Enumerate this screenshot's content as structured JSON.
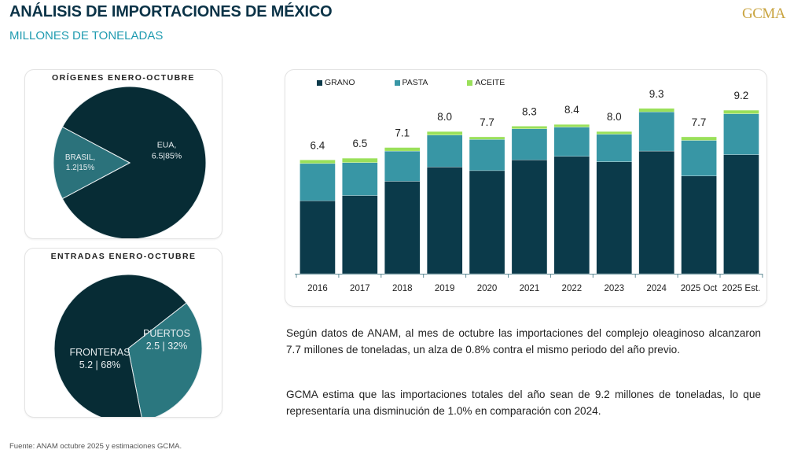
{
  "header": {
    "title": "ANÁLISIS DE IMPORTACIONES DE MÉXICO",
    "subtitle": "MILLONES DE TONELADAS",
    "logo": "GCMA"
  },
  "colors": {
    "grano": "#0b3a4a",
    "pasta": "#3896a5",
    "aceite": "#9ae05a",
    "brasil_slice": "#2b727b",
    "puertos_slice": "#2b777f",
    "dark_slice": "#072c35"
  },
  "chart_data": [
    {
      "type": "pie",
      "title": "ORÍGENES ENERO-OCTUBRE",
      "slices": [
        {
          "label": "EUA,",
          "value": 6.5,
          "percent": 85,
          "text": "6.5|85%"
        },
        {
          "label": "BRASIL,",
          "value": 1.2,
          "percent": 15,
          "text": "1.2|15%"
        }
      ]
    },
    {
      "type": "pie",
      "title": "ENTRADAS ENERO-OCTUBRE",
      "slices": [
        {
          "label": "FRONTERAS",
          "value": 5.2,
          "percent": 68,
          "text": "5.2 | 68%"
        },
        {
          "label": "PUERTOS",
          "value": 2.5,
          "percent": 32,
          "text": "2.5 | 32%"
        }
      ]
    },
    {
      "type": "bar",
      "stacked": true,
      "title": "",
      "xlabel": "",
      "ylabel": "Millones de toneladas",
      "ylim": [
        0,
        10
      ],
      "grid": false,
      "legend_position": "top-left",
      "categories": [
        "2016",
        "2017",
        "2018",
        "2019",
        "2020",
        "2021",
        "2022",
        "2023",
        "2024",
        "2025 Oct",
        "2025 Est."
      ],
      "series": [
        {
          "name": "GRANO",
          "values": [
            4.1,
            4.4,
            5.2,
            6.0,
            5.8,
            6.4,
            6.6,
            6.3,
            6.9,
            5.5,
            6.7
          ]
        },
        {
          "name": "PASTA",
          "values": [
            2.1,
            1.85,
            1.7,
            1.8,
            1.75,
            1.75,
            1.65,
            1.55,
            2.2,
            2.0,
            2.3
          ]
        },
        {
          "name": "ACEITE",
          "values": [
            0.2,
            0.25,
            0.2,
            0.2,
            0.15,
            0.15,
            0.15,
            0.15,
            0.2,
            0.2,
            0.2
          ]
        }
      ],
      "totals_labels": [
        "6.4",
        "6.5",
        "7.1",
        "8.0",
        "7.7",
        "8.3",
        "8.4",
        "8.0",
        "9.3",
        "7.7",
        "9.2"
      ]
    }
  ],
  "text": {
    "paragraph1": "Según datos de ANAM, al mes de octubre las importaciones del complejo oleaginoso alcanzaron 7.7 millones de toneladas, un alza de 0.8% contra el mismo periodo del año previo.",
    "paragraph2": "GCMA estima que las importaciones totales del año sean de 9.2 millones de toneladas, lo que representaría una disminución de 1.0% en comparación con 2024."
  },
  "footer": "Fuente: ANAM octubre 2025 y estimaciones GCMA."
}
